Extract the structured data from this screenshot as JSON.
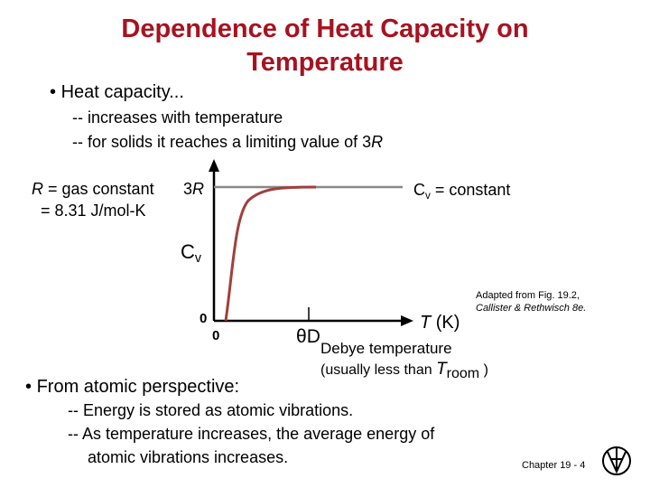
{
  "header": {
    "title_line1": "Dependence of Heat Capacity on",
    "title_line2": "Temperature"
  },
  "bullet1": {
    "text": "Heat capacity...",
    "lines": [
      "-- increases with temperature",
      "-- for solids it reaches a limiting value of 3"
    ],
    "line2_italic": "R"
  },
  "figure": {
    "r_symbol": "R",
    "r_def": " = gas constant",
    "r_value": "= 8.31 J/mol-K",
    "limit_num": "3",
    "limit_sym": "R",
    "cv_const_c": "C",
    "cv_const_sub": "v",
    "cv_const_text": " = constant",
    "cv_c": "C",
    "cv_sub": "v",
    "y_zero": "0",
    "x_zero": "0",
    "theta": "θ",
    "theta_sub": "D",
    "t_sym": "T",
    "t_unit": " (K)",
    "debye": "Debye temperature",
    "usually": "(usually less than ",
    "t_room": "T",
    "t_room_sub": "room",
    "usually_end": " )",
    "credit_line1": "Adapted from Fig. 19.2,",
    "credit_line2": "Callister & Rethwisch 8e."
  },
  "bullet2": {
    "text": "From atomic perspective:",
    "lines": [
      "-- Energy is stored as atomic vibrations.",
      "-- As temperature increases, the average energy of",
      "atomic vibrations increases."
    ]
  },
  "footer": {
    "chapter": "Chapter 19 -  4"
  }
}
